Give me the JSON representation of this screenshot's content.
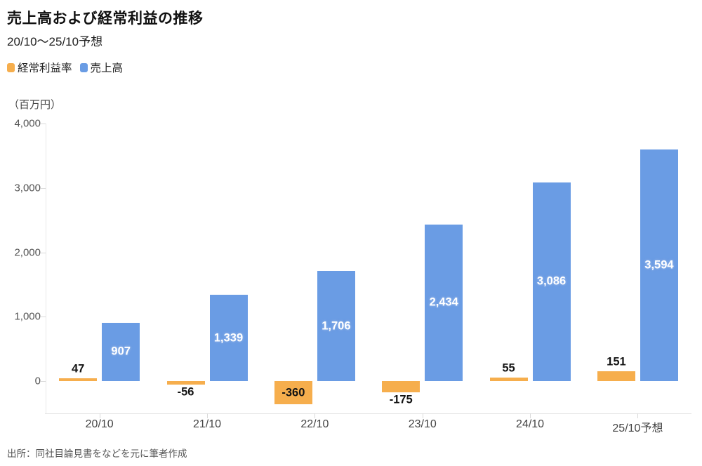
{
  "header": {
    "title": "売上高および経常利益の推移",
    "subtitle": "20/10〜25/10予想"
  },
  "chart_data": {
    "type": "bar",
    "title": "売上高および経常利益の推移",
    "subtitle": "20/10〜25/10予想",
    "unit_label": "（百万円）",
    "categories": [
      "20/10",
      "21/10",
      "22/10",
      "23/10",
      "24/10",
      "25/10予想"
    ],
    "series": [
      {
        "name": "経常利益率",
        "color": "#F6AE4D",
        "values": [
          47,
          -56,
          -360,
          -175,
          55,
          151
        ],
        "labels": [
          "47",
          "-56",
          "-360",
          "-175",
          "55",
          "151"
        ]
      },
      {
        "name": "売上高",
        "color": "#6A9CE4",
        "values": [
          907,
          1339,
          1706,
          2434,
          3086,
          3594
        ],
        "labels": [
          "907",
          "1,339",
          "1,706",
          "2,434",
          "3,086",
          "3,594"
        ]
      }
    ],
    "ylim": [
      -500,
      4000
    ],
    "yticks": [
      0,
      1000,
      2000,
      3000,
      4000
    ],
    "ytick_labels": [
      "0",
      "1,000",
      "2,000",
      "3,000",
      "4,000"
    ],
    "grid": false,
    "legend_position": "top-left"
  },
  "source": "出所：同社目論見書をなどを元に筆者作成"
}
